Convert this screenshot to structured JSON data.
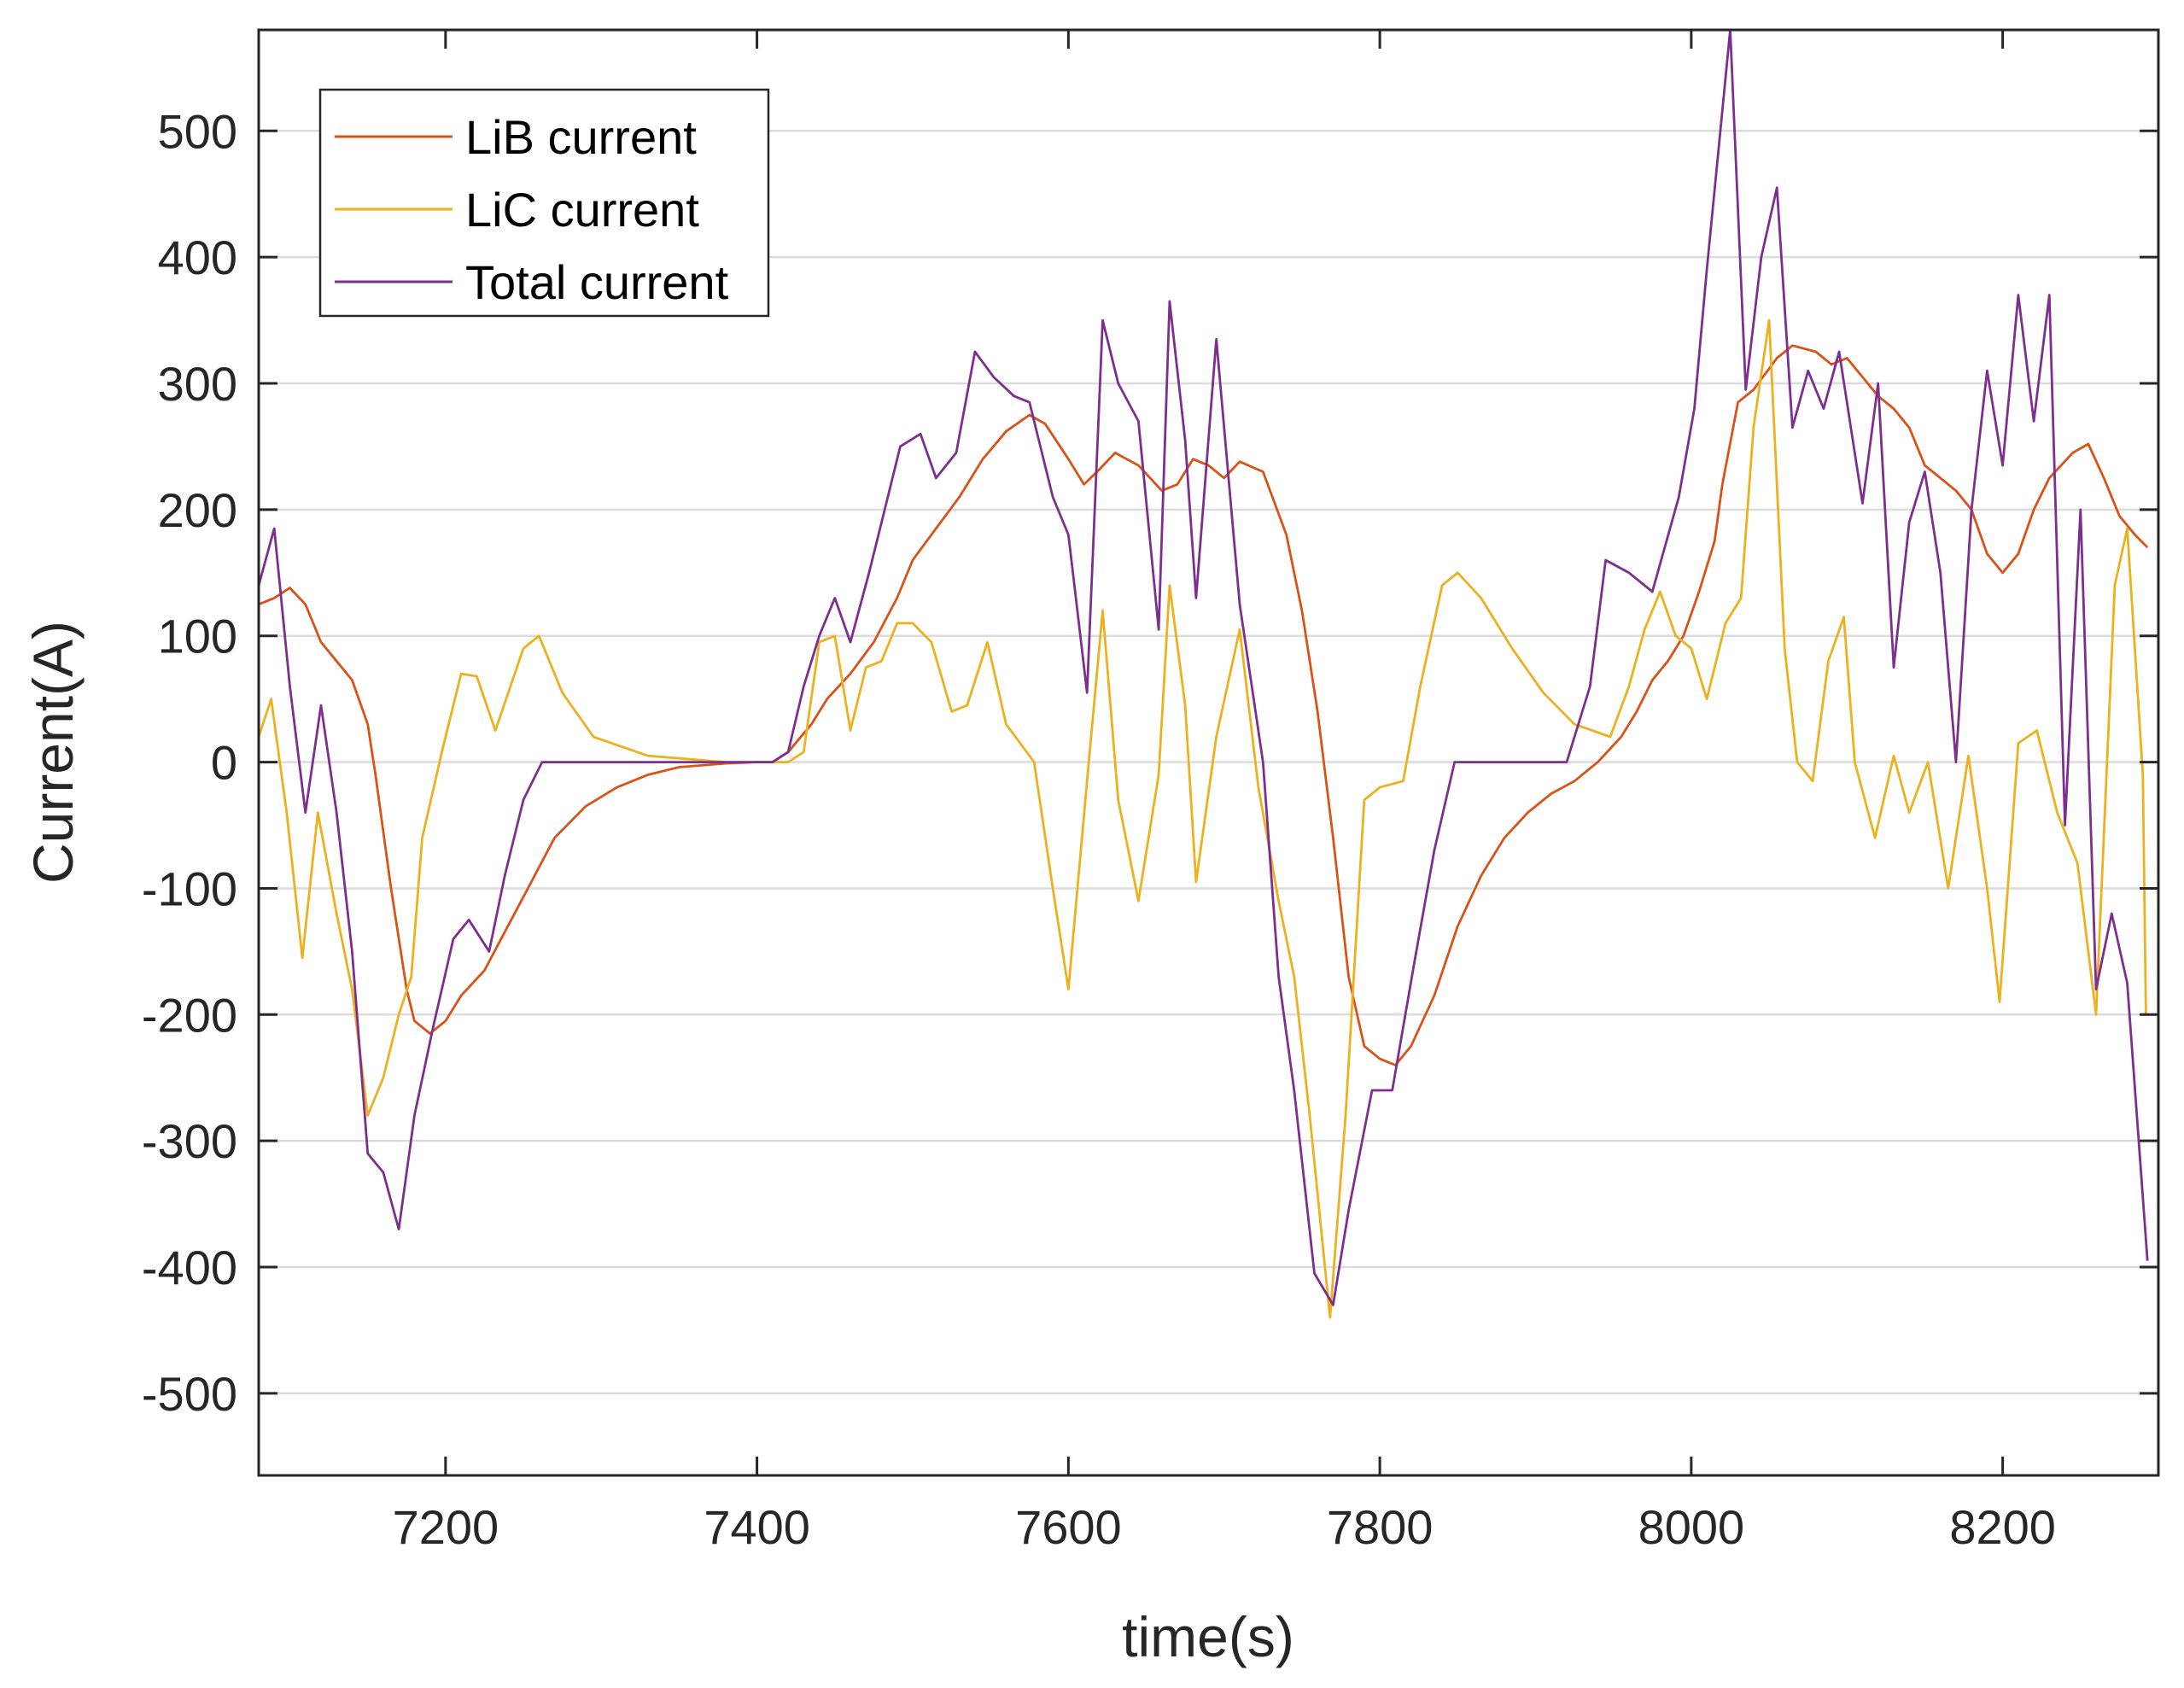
{
  "chart_data": {
    "type": "line",
    "title": "",
    "xlabel": "time(s)",
    "ylabel": "Current(A)",
    "xlim": [
      7080,
      8300
    ],
    "ylim": [
      -565,
      580
    ],
    "xticks": [
      7200,
      7400,
      7600,
      7800,
      8000,
      8200
    ],
    "yticks": [
      -500,
      -400,
      -300,
      -200,
      -100,
      0,
      100,
      200,
      300,
      400,
      500
    ],
    "grid": "horizontal",
    "legend_position": "top-left",
    "series": [
      {
        "name": "LiB current",
        "color": "#d95319",
        "points": [
          [
            7080,
            125
          ],
          [
            7090,
            130
          ],
          [
            7100,
            138
          ],
          [
            7110,
            125
          ],
          [
            7120,
            95
          ],
          [
            7130,
            80
          ],
          [
            7140,
            65
          ],
          [
            7150,
            30
          ],
          [
            7155,
            -10
          ],
          [
            7165,
            -100
          ],
          [
            7175,
            -180
          ],
          [
            7180,
            -205
          ],
          [
            7190,
            -215
          ],
          [
            7200,
            -205
          ],
          [
            7210,
            -185
          ],
          [
            7225,
            -165
          ],
          [
            7240,
            -130
          ],
          [
            7255,
            -95
          ],
          [
            7270,
            -60
          ],
          [
            7290,
            -35
          ],
          [
            7310,
            -20
          ],
          [
            7330,
            -10
          ],
          [
            7350,
            -4
          ],
          [
            7380,
            -1
          ],
          [
            7400,
            0
          ],
          [
            7410,
            0
          ],
          [
            7420,
            8
          ],
          [
            7435,
            30
          ],
          [
            7445,
            50
          ],
          [
            7460,
            70
          ],
          [
            7475,
            95
          ],
          [
            7490,
            130
          ],
          [
            7500,
            160
          ],
          [
            7515,
            185
          ],
          [
            7530,
            210
          ],
          [
            7545,
            240
          ],
          [
            7560,
            262
          ],
          [
            7575,
            275
          ],
          [
            7585,
            268
          ],
          [
            7600,
            240
          ],
          [
            7610,
            220
          ],
          [
            7620,
            232
          ],
          [
            7630,
            245
          ],
          [
            7645,
            235
          ],
          [
            7660,
            215
          ],
          [
            7670,
            220
          ],
          [
            7680,
            240
          ],
          [
            7690,
            235
          ],
          [
            7700,
            225
          ],
          [
            7710,
            238
          ],
          [
            7725,
            230
          ],
          [
            7740,
            180
          ],
          [
            7750,
            120
          ],
          [
            7760,
            40
          ],
          [
            7770,
            -60
          ],
          [
            7780,
            -170
          ],
          [
            7790,
            -225
          ],
          [
            7800,
            -235
          ],
          [
            7810,
            -240
          ],
          [
            7820,
            -225
          ],
          [
            7835,
            -185
          ],
          [
            7850,
            -130
          ],
          [
            7865,
            -90
          ],
          [
            7880,
            -60
          ],
          [
            7895,
            -40
          ],
          [
            7910,
            -25
          ],
          [
            7925,
            -15
          ],
          [
            7940,
            0
          ],
          [
            7955,
            20
          ],
          [
            7965,
            40
          ],
          [
            7975,
            65
          ],
          [
            7985,
            80
          ],
          [
            7995,
            100
          ],
          [
            8005,
            135
          ],
          [
            8015,
            175
          ],
          [
            8020,
            220
          ],
          [
            8030,
            285
          ],
          [
            8040,
            295
          ],
          [
            8055,
            320
          ],
          [
            8065,
            330
          ],
          [
            8080,
            325
          ],
          [
            8090,
            315
          ],
          [
            8100,
            320
          ],
          [
            8110,
            305
          ],
          [
            8120,
            290
          ],
          [
            8130,
            280
          ],
          [
            8140,
            265
          ],
          [
            8150,
            235
          ],
          [
            8160,
            225
          ],
          [
            8170,
            215
          ],
          [
            8180,
            200
          ],
          [
            8190,
            165
          ],
          [
            8200,
            150
          ],
          [
            8210,
            165
          ],
          [
            8220,
            200
          ],
          [
            8230,
            225
          ],
          [
            8245,
            245
          ],
          [
            8255,
            252
          ],
          [
            8265,
            225
          ],
          [
            8275,
            195
          ],
          [
            8285,
            180
          ],
          [
            8293,
            170
          ]
        ]
      },
      {
        "name": "LiC current",
        "color": "#edb120",
        "points": [
          [
            7080,
            20
          ],
          [
            7088,
            50
          ],
          [
            7098,
            -40
          ],
          [
            7108,
            -155
          ],
          [
            7118,
            -40
          ],
          [
            7130,
            -120
          ],
          [
            7140,
            -180
          ],
          [
            7150,
            -280
          ],
          [
            7160,
            -250
          ],
          [
            7170,
            -200
          ],
          [
            7178,
            -170
          ],
          [
            7185,
            -60
          ],
          [
            7198,
            10
          ],
          [
            7210,
            70
          ],
          [
            7220,
            68
          ],
          [
            7232,
            25
          ],
          [
            7250,
            90
          ],
          [
            7260,
            100
          ],
          [
            7275,
            55
          ],
          [
            7295,
            20
          ],
          [
            7330,
            5
          ],
          [
            7380,
            0
          ],
          [
            7405,
            0
          ],
          [
            7420,
            0
          ],
          [
            7430,
            8
          ],
          [
            7440,
            95
          ],
          [
            7450,
            100
          ],
          [
            7460,
            25
          ],
          [
            7470,
            75
          ],
          [
            7480,
            80
          ],
          [
            7490,
            110
          ],
          [
            7500,
            110
          ],
          [
            7512,
            95
          ],
          [
            7525,
            40
          ],
          [
            7535,
            45
          ],
          [
            7548,
            95
          ],
          [
            7560,
            30
          ],
          [
            7578,
            0
          ],
          [
            7590,
            -100
          ],
          [
            7600,
            -180
          ],
          [
            7612,
            -15
          ],
          [
            7622,
            120
          ],
          [
            7632,
            -30
          ],
          [
            7645,
            -110
          ],
          [
            7658,
            -10
          ],
          [
            7665,
            140
          ],
          [
            7675,
            45
          ],
          [
            7682,
            -95
          ],
          [
            7695,
            20
          ],
          [
            7710,
            105
          ],
          [
            7722,
            -20
          ],
          [
            7735,
            -110
          ],
          [
            7745,
            -170
          ],
          [
            7755,
            -280
          ],
          [
            7768,
            -440
          ],
          [
            7778,
            -280
          ],
          [
            7790,
            -30
          ],
          [
            7800,
            -20
          ],
          [
            7815,
            -15
          ],
          [
            7826,
            60
          ],
          [
            7840,
            140
          ],
          [
            7850,
            150
          ],
          [
            7865,
            130
          ],
          [
            7885,
            90
          ],
          [
            7905,
            55
          ],
          [
            7925,
            30
          ],
          [
            7948,
            20
          ],
          [
            7960,
            60
          ],
          [
            7970,
            105
          ],
          [
            7980,
            135
          ],
          [
            7990,
            100
          ],
          [
            8000,
            90
          ],
          [
            8010,
            50
          ],
          [
            8022,
            110
          ],
          [
            8032,
            130
          ],
          [
            8040,
            265
          ],
          [
            8050,
            350
          ],
          [
            8060,
            90
          ],
          [
            8068,
            0
          ],
          [
            8078,
            -15
          ],
          [
            8088,
            80
          ],
          [
            8098,
            115
          ],
          [
            8105,
            0
          ],
          [
            8118,
            -60
          ],
          [
            8130,
            5
          ],
          [
            8140,
            -40
          ],
          [
            8152,
            0
          ],
          [
            8165,
            -100
          ],
          [
            8178,
            5
          ],
          [
            8190,
            -100
          ],
          [
            8198,
            -190
          ],
          [
            8210,
            15
          ],
          [
            8222,
            25
          ],
          [
            8235,
            -40
          ],
          [
            8248,
            -80
          ],
          [
            8260,
            -200
          ],
          [
            8272,
            140
          ],
          [
            8280,
            185
          ],
          [
            8290,
            -10
          ],
          [
            8292,
            -200
          ]
        ]
      },
      {
        "name": "Total current",
        "color": "#7e2f8e",
        "points": [
          [
            7080,
            140
          ],
          [
            7090,
            185
          ],
          [
            7100,
            60
          ],
          [
            7110,
            -40
          ],
          [
            7120,
            45
          ],
          [
            7130,
            -40
          ],
          [
            7140,
            -150
          ],
          [
            7150,
            -310
          ],
          [
            7160,
            -325
          ],
          [
            7170,
            -370
          ],
          [
            7180,
            -280
          ],
          [
            7192,
            -210
          ],
          [
            7205,
            -140
          ],
          [
            7215,
            -125
          ],
          [
            7228,
            -150
          ],
          [
            7238,
            -90
          ],
          [
            7250,
            -30
          ],
          [
            7262,
            0
          ],
          [
            7290,
            0
          ],
          [
            7350,
            0
          ],
          [
            7400,
            0
          ],
          [
            7410,
            0
          ],
          [
            7420,
            8
          ],
          [
            7430,
            60
          ],
          [
            7440,
            100
          ],
          [
            7450,
            130
          ],
          [
            7460,
            95
          ],
          [
            7472,
            150
          ],
          [
            7482,
            200
          ],
          [
            7492,
            250
          ],
          [
            7505,
            260
          ],
          [
            7515,
            225
          ],
          [
            7528,
            245
          ],
          [
            7540,
            325
          ],
          [
            7552,
            305
          ],
          [
            7565,
            290
          ],
          [
            7575,
            285
          ],
          [
            7590,
            210
          ],
          [
            7600,
            180
          ],
          [
            7612,
            55
          ],
          [
            7622,
            350
          ],
          [
            7632,
            300
          ],
          [
            7645,
            270
          ],
          [
            7658,
            105
          ],
          [
            7665,
            365
          ],
          [
            7675,
            255
          ],
          [
            7682,
            130
          ],
          [
            7695,
            335
          ],
          [
            7710,
            125
          ],
          [
            7725,
            0
          ],
          [
            7735,
            -170
          ],
          [
            7745,
            -260
          ],
          [
            7758,
            -405
          ],
          [
            7770,
            -430
          ],
          [
            7780,
            -355
          ],
          [
            7795,
            -260
          ],
          [
            7808,
            -260
          ],
          [
            7822,
            -160
          ],
          [
            7835,
            -70
          ],
          [
            7848,
            0
          ],
          [
            7870,
            0
          ],
          [
            7900,
            0
          ],
          [
            7920,
            0
          ],
          [
            7935,
            60
          ],
          [
            7945,
            160
          ],
          [
            7960,
            150
          ],
          [
            7975,
            135
          ],
          [
            7992,
            210
          ],
          [
            8002,
            280
          ],
          [
            8010,
            390
          ],
          [
            8025,
            580
          ],
          [
            8035,
            295
          ],
          [
            8045,
            400
          ],
          [
            8055,
            455
          ],
          [
            8065,
            265
          ],
          [
            8075,
            310
          ],
          [
            8085,
            280
          ],
          [
            8095,
            325
          ],
          [
            8110,
            205
          ],
          [
            8120,
            300
          ],
          [
            8130,
            75
          ],
          [
            8140,
            190
          ],
          [
            8150,
            230
          ],
          [
            8160,
            150
          ],
          [
            8170,
            0
          ],
          [
            8180,
            200
          ],
          [
            8190,
            310
          ],
          [
            8200,
            235
          ],
          [
            8210,
            370
          ],
          [
            8220,
            270
          ],
          [
            8230,
            370
          ],
          [
            8240,
            -50
          ],
          [
            8250,
            200
          ],
          [
            8260,
            -180
          ],
          [
            8270,
            -120
          ],
          [
            8280,
            -175
          ],
          [
            8293,
            -395
          ]
        ]
      }
    ]
  }
}
